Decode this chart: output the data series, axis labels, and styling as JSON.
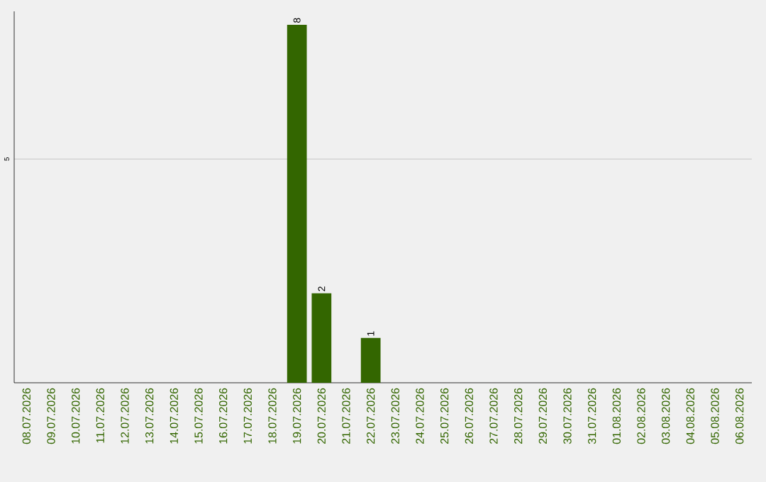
{
  "chart_data": {
    "type": "bar",
    "categories": [
      "08.07.2026",
      "09.07.2026",
      "10.07.2026",
      "11.07.2026",
      "12.07.2026",
      "13.07.2026",
      "14.07.2026",
      "15.07.2026",
      "16.07.2026",
      "17.07.2026",
      "18.07.2026",
      "19.07.2026",
      "20.07.2026",
      "21.07.2026",
      "22.07.2026",
      "23.07.2026",
      "24.07.2026",
      "25.07.2026",
      "26.07.2026",
      "27.07.2026",
      "28.07.2026",
      "29.07.2026",
      "30.07.2026",
      "31.07.2026",
      "01.08.2026",
      "02.08.2026",
      "03.08.2026",
      "04.08.2026",
      "05.08.2026",
      "06.08.2026"
    ],
    "values": [
      0,
      0,
      0,
      0,
      0,
      0,
      0,
      0,
      0,
      0,
      0,
      8,
      2,
      0,
      1,
      0,
      0,
      0,
      0,
      0,
      0,
      0,
      0,
      0,
      0,
      0,
      0,
      0,
      0,
      0
    ],
    "value_labels": [
      null,
      null,
      null,
      null,
      null,
      null,
      null,
      null,
      null,
      null,
      null,
      "8",
      "2",
      null,
      "1",
      null,
      null,
      null,
      null,
      null,
      null,
      null,
      null,
      null,
      null,
      null,
      null,
      null,
      null,
      null
    ],
    "color": "#336600",
    "ylim": [
      0,
      8.3
    ],
    "yticks": [
      5
    ],
    "grid": "y"
  }
}
